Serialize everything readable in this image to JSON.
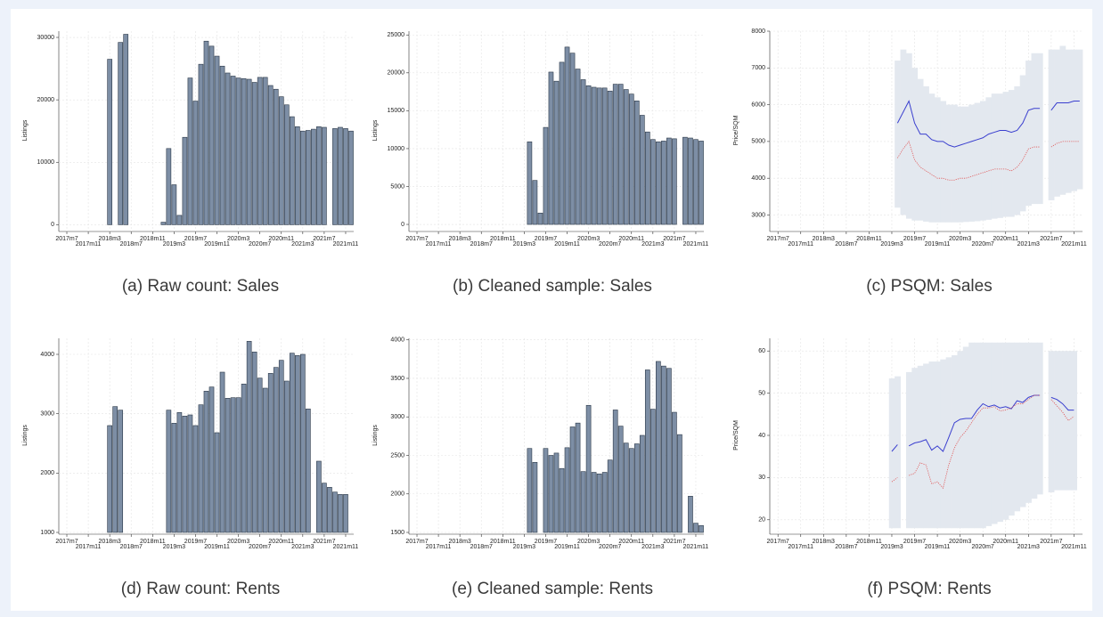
{
  "chart_data": [
    {
      "type": "bar",
      "caption": "(a)  Raw count: Sales",
      "ylabel": "Listings",
      "color": "#7d8ea5",
      "categories": [
        "2017m7",
        null,
        null,
        null,
        "2017m11",
        null,
        null,
        null,
        "2018m3",
        null,
        null,
        null,
        "2018m7",
        null,
        null,
        null,
        "2018m11",
        null,
        null,
        null,
        "2019m3",
        null,
        null,
        null,
        "2019m7",
        null,
        null,
        null,
        "2019m11",
        null,
        null,
        null,
        "2020m3",
        null,
        null,
        null,
        "2020m7",
        null,
        null,
        null,
        "2020m11",
        null,
        null,
        null,
        "2021m3",
        null,
        null,
        null,
        "2021m7",
        null,
        null,
        null,
        "2021m11",
        null
      ],
      "values": [
        null,
        null,
        null,
        null,
        null,
        null,
        null,
        null,
        26500,
        null,
        29200,
        30500,
        null,
        null,
        null,
        null,
        null,
        null,
        400,
        12200,
        6400,
        1500,
        14000,
        23500,
        19800,
        25700,
        29400,
        28600,
        27000,
        25400,
        24300,
        23800,
        23500,
        23400,
        23300,
        22800,
        23600,
        23600,
        22300,
        21700,
        20500,
        19200,
        17300,
        15700,
        15000,
        15100,
        15300,
        15700,
        15600,
        null,
        15400,
        15600,
        15400,
        15000
      ],
      "ylim": [
        -800,
        31000
      ],
      "yticks": [
        0,
        10000,
        20000,
        30000
      ],
      "grid": true
    },
    {
      "type": "bar",
      "caption": "(b)  Cleaned sample: Sales",
      "ylabel": "Listings",
      "color": "#7d8ea5",
      "categories": [
        "2017m7",
        null,
        null,
        null,
        "2017m11",
        null,
        null,
        null,
        "2018m3",
        null,
        null,
        null,
        "2018m7",
        null,
        null,
        null,
        "2018m11",
        null,
        null,
        null,
        "2019m3",
        null,
        null,
        null,
        "2019m7",
        null,
        null,
        null,
        "2019m11",
        null,
        null,
        null,
        "2020m3",
        null,
        null,
        null,
        "2020m7",
        null,
        null,
        null,
        "2020m11",
        null,
        null,
        null,
        "2021m3",
        null,
        null,
        null,
        "2021m7",
        null,
        null,
        null,
        "2021m11",
        null
      ],
      "values": [
        null,
        null,
        null,
        null,
        null,
        null,
        null,
        null,
        null,
        null,
        null,
        null,
        null,
        null,
        null,
        null,
        null,
        null,
        null,
        null,
        null,
        10900,
        5800,
        1500,
        12800,
        20100,
        18900,
        21400,
        23400,
        22600,
        20500,
        19100,
        18300,
        18100,
        18000,
        18000,
        17600,
        18500,
        18500,
        17800,
        17200,
        16300,
        14400,
        12200,
        11200,
        10900,
        11000,
        11400,
        11300,
        null,
        11500,
        11400,
        11200,
        11000
      ],
      "ylim": [
        -700,
        25500
      ],
      "yticks": [
        0,
        5000,
        10000,
        15000,
        20000,
        25000
      ],
      "grid": true
    },
    {
      "type": "line",
      "caption": "(c)  PSQM: Sales",
      "ylabel": "Price/SQM",
      "categories": [
        "2017m7",
        null,
        null,
        null,
        "2017m11",
        null,
        null,
        null,
        "2018m3",
        null,
        null,
        null,
        "2018m7",
        null,
        null,
        null,
        "2018m11",
        null,
        null,
        null,
        "2019m3",
        null,
        null,
        null,
        "2019m7",
        null,
        null,
        null,
        "2019m11",
        null,
        null,
        null,
        "2020m3",
        null,
        null,
        null,
        "2020m7",
        null,
        null,
        null,
        "2020m11",
        null,
        null,
        null,
        "2021m3",
        null,
        null,
        null,
        "2021m7",
        null,
        null,
        null,
        "2021m11",
        null
      ],
      "band": {
        "color": "#e3e8ef",
        "lower": [
          null,
          null,
          null,
          null,
          null,
          null,
          null,
          null,
          null,
          null,
          null,
          null,
          null,
          null,
          null,
          null,
          null,
          null,
          null,
          null,
          null,
          3200,
          3000,
          2900,
          2850,
          2850,
          2820,
          2800,
          2800,
          2800,
          2800,
          2800,
          2800,
          2810,
          2820,
          2830,
          2850,
          2870,
          2900,
          2920,
          2950,
          2950,
          3000,
          3100,
          3250,
          3300,
          3300,
          null,
          3400,
          3500,
          3550,
          3600,
          3650,
          3700
        ],
        "upper": [
          null,
          null,
          null,
          null,
          null,
          null,
          null,
          null,
          null,
          null,
          null,
          null,
          null,
          null,
          null,
          null,
          null,
          null,
          null,
          null,
          null,
          7200,
          7500,
          7400,
          7000,
          6700,
          6500,
          6300,
          6200,
          6100,
          6000,
          6000,
          5950,
          5950,
          6000,
          6050,
          6100,
          6200,
          6300,
          6300,
          6350,
          6400,
          6500,
          6800,
          7200,
          7400,
          7400,
          null,
          7500,
          7500,
          7600,
          7500,
          7500,
          7500
        ]
      },
      "series": [
        {
          "color": "#3a3fcf",
          "style": "solid",
          "values": [
            null,
            null,
            null,
            null,
            null,
            null,
            null,
            null,
            null,
            null,
            null,
            null,
            null,
            null,
            null,
            null,
            null,
            null,
            null,
            null,
            null,
            5500,
            5800,
            6100,
            5500,
            5200,
            5200,
            5050,
            5000,
            5000,
            4900,
            4850,
            4900,
            4950,
            5000,
            5050,
            5100,
            5200,
            5250,
            5300,
            5300,
            5250,
            5300,
            5500,
            5850,
            5900,
            5900,
            null,
            5850,
            6050,
            6050,
            6050,
            6100,
            6100
          ]
        },
        {
          "color": "#e05555",
          "style": "dotted",
          "values": [
            null,
            null,
            null,
            null,
            null,
            null,
            null,
            null,
            null,
            null,
            null,
            null,
            null,
            null,
            null,
            null,
            null,
            null,
            null,
            null,
            null,
            4550,
            4800,
            5000,
            4500,
            4300,
            4200,
            4100,
            4000,
            4000,
            3950,
            3950,
            4000,
            4000,
            4050,
            4100,
            4150,
            4200,
            4250,
            4250,
            4250,
            4200,
            4300,
            4500,
            4800,
            4850,
            4850,
            null,
            4850,
            4950,
            5000,
            5000,
            5000,
            5000
          ]
        }
      ],
      "ylim": [
        2600,
        8000
      ],
      "yticks": [
        3000,
        4000,
        5000,
        6000,
        7000,
        8000
      ],
      "grid": true
    },
    {
      "type": "bar",
      "caption": "(d)  Raw count: Rents",
      "ylabel": "Listings",
      "color": "#7d8ea5",
      "categories": [
        "2017m7",
        null,
        null,
        null,
        "2017m11",
        null,
        null,
        null,
        "2018m3",
        null,
        null,
        null,
        "2018m7",
        null,
        null,
        null,
        "2018m11",
        null,
        null,
        null,
        "2019m3",
        null,
        null,
        null,
        "2019m7",
        null,
        null,
        null,
        "2019m11",
        null,
        null,
        null,
        "2020m3",
        null,
        null,
        null,
        "2020m7",
        null,
        null,
        null,
        "2020m11",
        null,
        null,
        null,
        "2021m3",
        null,
        null,
        null,
        "2021m7",
        null,
        null,
        null,
        "2021m11",
        null
      ],
      "values": [
        null,
        null,
        null,
        null,
        null,
        null,
        null,
        null,
        2800,
        3120,
        3060,
        null,
        null,
        null,
        null,
        null,
        null,
        null,
        null,
        3060,
        2840,
        3020,
        2960,
        2980,
        2800,
        3150,
        3380,
        3450,
        2680,
        3700,
        3260,
        3270,
        3270,
        3500,
        4220,
        4040,
        3600,
        3430,
        3680,
        3780,
        3900,
        3550,
        4020,
        3980,
        4000,
        3080,
        null,
        2200,
        1830,
        1760,
        1680,
        1640,
        1640,
        null
      ],
      "ylim": [
        1000,
        4270
      ],
      "yticks": [
        1000,
        2000,
        3000,
        4000
      ],
      "grid": true
    },
    {
      "type": "bar",
      "caption": "(e)  Cleaned sample: Rents",
      "ylabel": "Listings",
      "color": "#7d8ea5",
      "categories": [
        "2017m7",
        null,
        null,
        null,
        "2017m11",
        null,
        null,
        null,
        "2018m3",
        null,
        null,
        null,
        "2018m7",
        null,
        null,
        null,
        "2018m11",
        null,
        null,
        null,
        "2019m3",
        null,
        null,
        null,
        "2019m7",
        null,
        null,
        null,
        "2019m11",
        null,
        null,
        null,
        "2020m3",
        null,
        null,
        null,
        "2020m7",
        null,
        null,
        null,
        "2020m11",
        null,
        null,
        null,
        "2021m3",
        null,
        null,
        null,
        "2021m7",
        null,
        null,
        null,
        "2021m11",
        null
      ],
      "values": [
        null,
        null,
        null,
        null,
        null,
        null,
        null,
        null,
        null,
        null,
        null,
        null,
        null,
        null,
        null,
        null,
        null,
        null,
        null,
        null,
        null,
        2590,
        2410,
        null,
        2590,
        2500,
        2530,
        2330,
        2600,
        2870,
        2920,
        2290,
        3150,
        2280,
        2260,
        2280,
        2440,
        3090,
        2880,
        2660,
        2590,
        2650,
        2760,
        3610,
        3100,
        3720,
        3660,
        3630,
        3060,
        2770,
        null,
        1970,
        1620,
        1590
      ],
      "ylim": [
        1500,
        4020
      ],
      "yticks": [
        1500,
        2000,
        2500,
        3000,
        3500,
        4000
      ],
      "grid": true
    },
    {
      "type": "line",
      "caption": "(f)  PSQM: Rents",
      "ylabel": "Price/SQM",
      "categories": [
        "2017m7",
        null,
        null,
        null,
        "2017m11",
        null,
        null,
        null,
        "2018m3",
        null,
        null,
        null,
        "2018m7",
        null,
        null,
        null,
        "2018m11",
        null,
        null,
        null,
        "2019m3",
        null,
        null,
        null,
        "2019m7",
        null,
        null,
        null,
        "2019m11",
        null,
        null,
        null,
        "2020m3",
        null,
        null,
        null,
        "2020m7",
        null,
        null,
        null,
        "2020m11",
        null,
        null,
        null,
        "2021m3",
        null,
        null,
        null,
        "2021m7",
        null,
        null,
        null,
        "2021m11",
        null
      ],
      "band": {
        "color": "#e3e8ef",
        "lower": [
          null,
          null,
          null,
          null,
          null,
          null,
          null,
          null,
          null,
          null,
          null,
          null,
          null,
          null,
          null,
          null,
          null,
          null,
          null,
          null,
          18,
          18,
          null,
          18,
          18,
          18,
          18,
          18,
          18,
          18,
          18,
          18,
          18,
          18,
          18,
          18,
          18,
          18.5,
          19,
          19.5,
          20,
          21,
          22,
          23,
          24,
          25,
          26,
          null,
          26.5,
          27,
          27,
          27,
          27,
          null
        ],
        "upper": [
          null,
          null,
          null,
          null,
          null,
          null,
          null,
          null,
          null,
          null,
          null,
          null,
          null,
          null,
          null,
          null,
          null,
          null,
          null,
          null,
          53.5,
          54,
          null,
          55,
          56,
          56.5,
          57,
          57.5,
          57.5,
          58,
          58.5,
          59,
          60,
          61,
          62,
          62,
          62,
          62,
          62,
          62,
          62,
          62,
          62,
          62,
          62,
          62,
          62,
          null,
          60,
          60,
          60,
          60,
          60,
          null
        ]
      },
      "series": [
        {
          "color": "#3a3fcf",
          "style": "solid",
          "values": [
            null,
            null,
            null,
            null,
            null,
            null,
            null,
            null,
            null,
            null,
            null,
            null,
            null,
            null,
            null,
            null,
            null,
            null,
            null,
            null,
            36.2,
            37.8,
            null,
            37.5,
            38.2,
            38.5,
            39,
            36.5,
            37.5,
            36.2,
            39.5,
            43,
            43.8,
            44,
            44,
            46,
            47.5,
            46.8,
            47.2,
            46.5,
            46.8,
            46.3,
            48.2,
            47.8,
            49,
            49.5,
            49.5,
            null,
            49,
            48.5,
            47.5,
            46,
            46,
            null
          ]
        },
        {
          "color": "#e05555",
          "style": "dotted",
          "values": [
            null,
            null,
            null,
            null,
            null,
            null,
            null,
            null,
            null,
            null,
            null,
            null,
            null,
            null,
            null,
            null,
            null,
            null,
            null,
            null,
            29,
            30,
            null,
            30.5,
            31,
            33.5,
            33,
            28.5,
            29,
            27.5,
            33,
            37,
            39.5,
            41,
            43,
            45,
            46.5,
            46.5,
            46.8,
            45.8,
            46,
            46.5,
            47.5,
            47.5,
            48.5,
            49.5,
            49.5,
            null,
            48.5,
            47,
            45.5,
            43.5,
            44.5,
            null
          ]
        }
      ],
      "ylim": [
        17,
        63
      ],
      "yticks": [
        20,
        30,
        40,
        50,
        60
      ],
      "grid": true
    }
  ]
}
